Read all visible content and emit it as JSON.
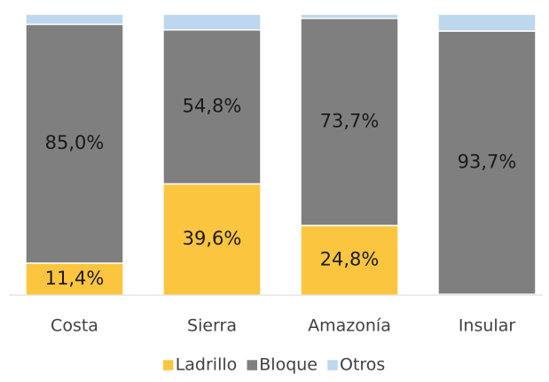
{
  "chart_data": {
    "type": "stacked_bar",
    "categories": [
      "Costa",
      "Sierra",
      "Amazonía",
      "Insular"
    ],
    "series": [
      {
        "name": "Ladrillo",
        "color": "#fcc53f",
        "values": [
          11.4,
          39.6,
          24.8,
          0.3
        ],
        "value_labels": [
          "11,4%",
          "39,6%",
          "24,8%",
          null
        ]
      },
      {
        "name": "Bloque",
        "color": "#7f7f7f",
        "values": [
          85.0,
          54.8,
          73.7,
          93.7
        ],
        "value_labels": [
          "85,0%",
          "54,8%",
          "73,7%",
          "93,7%"
        ]
      },
      {
        "name": "Otros",
        "color": "#bdd7ee",
        "values": [
          3.6,
          5.6,
          1.5,
          6.0
        ],
        "value_labels": [
          null,
          null,
          null,
          null
        ]
      }
    ],
    "legend": "bottom"
  }
}
